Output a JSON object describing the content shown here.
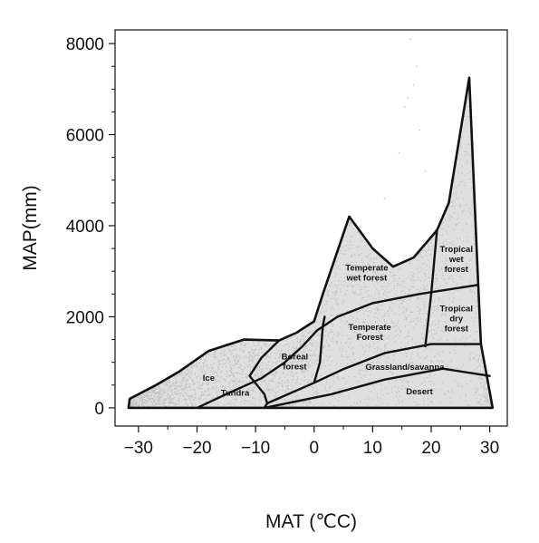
{
  "chart_data": {
    "type": "scatter",
    "xlabel": "MAT (℃C)",
    "ylabel": "MAP(mm)",
    "xlim": [
      -34,
      33
    ],
    "ylim": [
      -400,
      8300
    ],
    "xticks": [
      -30,
      -20,
      -10,
      0,
      10,
      20,
      30
    ],
    "yticks": [
      0,
      2000,
      4000,
      6000,
      8000
    ],
    "grid": false,
    "legend": "none",
    "colors": {
      "points": "#bdbdbd",
      "biome_fill": "#c4c4c4",
      "boundary": "#111111"
    },
    "envelope": [
      [
        -31.7,
        0
      ],
      [
        -31.5,
        200
      ],
      [
        -27,
        500
      ],
      [
        -23,
        800
      ],
      [
        -18,
        1250
      ],
      [
        -12,
        1500
      ],
      [
        -6,
        1480
      ],
      [
        -3,
        1650
      ],
      [
        0,
        1900
      ],
      [
        1.5,
        2500
      ],
      [
        6,
        4200
      ],
      [
        10,
        3500
      ],
      [
        13.5,
        3100
      ],
      [
        17,
        3300
      ],
      [
        21,
        3900
      ],
      [
        23,
        4500
      ],
      [
        26.5,
        7250
      ],
      [
        28,
        2800
      ],
      [
        28.5,
        1400
      ],
      [
        29.5,
        700
      ],
      [
        30.5,
        0
      ]
    ],
    "boundaries": [
      {
        "name": "cold-line",
        "points": [
          [
            -20,
            0
          ],
          [
            -15,
            300
          ],
          [
            -9,
            650
          ],
          [
            -5,
            1000
          ],
          [
            -2,
            1350
          ],
          [
            0.5,
            1700
          ],
          [
            4,
            2000
          ]
        ]
      },
      {
        "name": "ice-tundra",
        "points": [
          [
            -6,
            1480
          ],
          [
            -9,
            1100
          ],
          [
            -11,
            700
          ],
          [
            -8.5,
            300
          ],
          [
            -8,
            100
          ],
          [
            -8.5,
            0
          ]
        ]
      },
      {
        "name": "mid-temperate",
        "points": [
          [
            -8.5,
            0
          ],
          [
            3,
            300
          ],
          [
            12,
            620
          ],
          [
            22,
            860
          ],
          [
            30,
            700
          ]
        ]
      },
      {
        "name": "lower-temperate",
        "points": [
          [
            -8,
            100
          ],
          [
            0,
            550
          ],
          [
            5,
            850
          ],
          [
            12,
            1200
          ],
          [
            20,
            1400
          ],
          [
            28.5,
            1400
          ]
        ]
      },
      {
        "name": "upper-temperate",
        "points": [
          [
            4,
            2000
          ],
          [
            10,
            2300
          ],
          [
            18,
            2500
          ],
          [
            28,
            2700
          ]
        ]
      },
      {
        "name": "boreal-temperate",
        "points": [
          [
            0,
            550
          ],
          [
            1,
            1000
          ],
          [
            1.5,
            1800
          ],
          [
            1.8,
            2000
          ]
        ]
      },
      {
        "name": "tropical-split",
        "points": [
          [
            19,
            1350
          ],
          [
            20,
            2500
          ],
          [
            21,
            3900
          ]
        ]
      }
    ],
    "regions": [
      {
        "name": "Ice",
        "lines": [
          "Ice"
        ],
        "x": -18,
        "y": 600
      },
      {
        "name": "Tundra",
        "lines": [
          "Tundra"
        ],
        "x": -13.5,
        "y": 270
      },
      {
        "name": "Boreal forest",
        "lines": [
          "Boreal",
          "forest"
        ],
        "x": -3.3,
        "y": 950
      },
      {
        "name": "Temperate Forest",
        "lines": [
          "Temperate",
          "Forest"
        ],
        "x": 9.5,
        "y": 1600
      },
      {
        "name": "Temperate wet forest",
        "lines": [
          "Temperate",
          "wet forest"
        ],
        "x": 9,
        "y": 2900
      },
      {
        "name": "Tropical wet forest",
        "lines": [
          "Tropical",
          "wet",
          "forest"
        ],
        "x": 24.3,
        "y": 3200
      },
      {
        "name": "Tropical dry forest",
        "lines": [
          "Tropical",
          "dry",
          "forest"
        ],
        "x": 24.3,
        "y": 1900
      },
      {
        "name": "Grassland/savanna",
        "lines": [
          "Grassland/savanna"
        ],
        "x": 15.5,
        "y": 830
      },
      {
        "name": "Desert",
        "lines": [
          "Desert"
        ],
        "x": 18,
        "y": 300
      }
    ]
  }
}
